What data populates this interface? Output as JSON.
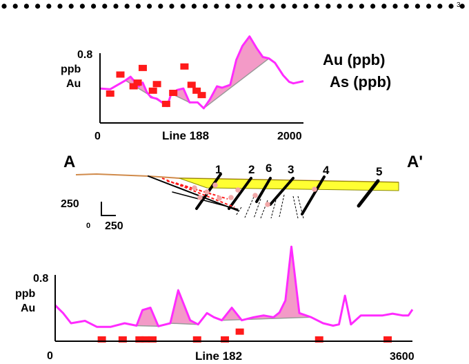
{
  "page_marker": "3",
  "colors": {
    "au": "#ff1a1a",
    "as": "#ff2bff",
    "fill": "#f39ac7",
    "grey": "#9a9a9a",
    "yellow": "#ffff33",
    "ground": "#d08a4a",
    "marker_circle": "#f2a8a8"
  },
  "legend": {
    "au_label": "Au (ppb)",
    "as_label": "As (ppb)"
  },
  "chart_data": [
    {
      "type": "line",
      "xlabel": "Line 188",
      "ylabel": [
        "0.8",
        "ppb",
        "Au"
      ],
      "x_ticks": [
        "0",
        "2000"
      ],
      "xlim": [
        0,
        2000
      ],
      "ylim": [
        0,
        1.3
      ],
      "series": [
        {
          "name": "As (ppb)",
          "kind": "line",
          "x": [
            0,
            100,
            150,
            250,
            300,
            380,
            420,
            460,
            500,
            560,
            640,
            660,
            700,
            760,
            820,
            880,
            960,
            1020,
            1080,
            1150,
            1200,
            1280,
            1340,
            1400,
            1470,
            1540,
            1600,
            1660,
            1720,
            1800,
            1860,
            1900,
            2000
          ],
          "y": [
            0.47,
            0.46,
            0.5,
            0.58,
            0.63,
            0.5,
            0.55,
            0.42,
            0.35,
            0.33,
            0.25,
            0.23,
            0.4,
            0.45,
            0.47,
            0.28,
            0.28,
            0.2,
            0.32,
            0.5,
            0.48,
            0.52,
            0.86,
            1.05,
            1.18,
            1.02,
            0.9,
            0.88,
            0.82,
            0.65,
            0.56,
            0.54,
            0.57
          ]
        },
        {
          "name": "Au (ppb)",
          "kind": "scatter",
          "x": [
            100,
            200,
            330,
            370,
            420,
            520,
            560,
            650,
            720,
            830,
            900,
            950,
            1000
          ],
          "y": [
            0.4,
            0.66,
            0.5,
            0.55,
            0.75,
            0.44,
            0.53,
            0.26,
            0.41,
            0.77,
            0.52,
            0.44,
            0.38
          ]
        }
      ]
    },
    {
      "type": "line",
      "xlabel": "Line 182",
      "ylabel": [
        "0.8",
        "ppb",
        "Au"
      ],
      "x_ticks": [
        "0",
        "3600"
      ],
      "xlim": [
        0,
        3600
      ],
      "ylim": [
        0,
        1.8
      ],
      "series": [
        {
          "name": "As (ppb)",
          "kind": "line",
          "x": [
            0,
            80,
            160,
            300,
            420,
            560,
            700,
            820,
            880,
            960,
            1040,
            1160,
            1240,
            1360,
            1440,
            1530,
            1600,
            1680,
            1780,
            1880,
            2000,
            2100,
            2200,
            2260,
            2320,
            2380,
            2460,
            2580,
            2700,
            2800,
            2860,
            2920,
            2980,
            3080,
            3200,
            3300,
            3400,
            3500,
            3560,
            3600
          ],
          "y": [
            0.6,
            0.47,
            0.3,
            0.34,
            0.24,
            0.24,
            0.3,
            0.26,
            0.52,
            0.56,
            0.25,
            0.3,
            0.85,
            0.35,
            0.28,
            0.47,
            0.4,
            0.35,
            0.56,
            0.35,
            0.4,
            0.43,
            0.4,
            0.48,
            0.68,
            1.58,
            0.47,
            0.4,
            0.3,
            0.26,
            0.28,
            0.76,
            0.28,
            0.43,
            0.43,
            0.43,
            0.46,
            0.43,
            0.43,
            0.53
          ]
        },
        {
          "name": "Au (ppb)",
          "kind": "scatter",
          "x": [
            470,
            680,
            850,
            910,
            980,
            1430,
            1710,
            1860,
            2660,
            3350
          ],
          "y": [
            0.03,
            0.03,
            0.03,
            0.03,
            0.03,
            0.03,
            0.03,
            0.16,
            0.03,
            0.03
          ]
        }
      ]
    }
  ],
  "cross_section": {
    "end_left": "A",
    "end_right": "A'",
    "fault_numbers": [
      "1",
      "2",
      "6",
      "3",
      "4",
      "5"
    ],
    "scale_vertical": "250",
    "scale_horizontal_start": "0",
    "scale_horizontal": "250"
  }
}
